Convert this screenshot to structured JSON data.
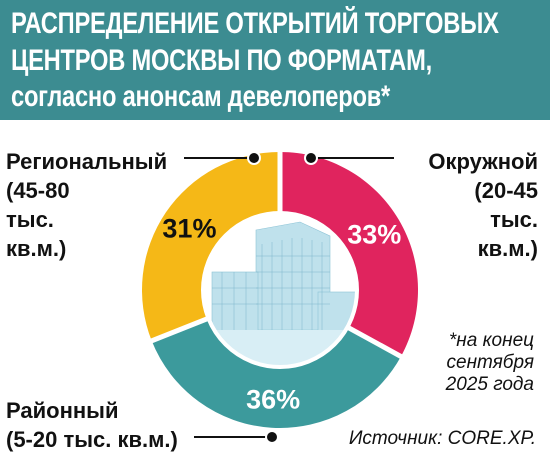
{
  "header": {
    "line1": "РАСПРЕДЕЛЕНИЕ ОТКРЫТИЙ ТОРГОВЫХ",
    "line2": "ЦЕНТРОВ МОСКВЫ ПО ФОРМАТАМ,",
    "line3": "согласно анонсам девелоперов*"
  },
  "chart_data": {
    "type": "pie",
    "categories": [
      "Окружной (20-45 тыс. кв.м.)",
      "Районный (5-20 тыс. кв.м.)",
      "Региональный (45-80 тыс. кв.м.)"
    ],
    "values": [
      33,
      36,
      31
    ],
    "value_labels": [
      "33%",
      "36%",
      "31%"
    ],
    "colors": [
      "#e0245e",
      "#3c9a9c",
      "#f5b817"
    ],
    "donut": true
  },
  "labels": {
    "left": [
      "Региональный",
      "(45-80",
      "тыс.",
      "кв.м.)"
    ],
    "right": [
      "Окружной",
      "(20-45",
      "тыс.",
      "кв.м.)"
    ],
    "bottom": [
      "Районный",
      "(5-20 тыс. кв.м.)"
    ]
  },
  "note": [
    "*на конец",
    "сентября",
    "2025 года"
  ],
  "source": "Источник: CORE.XP."
}
